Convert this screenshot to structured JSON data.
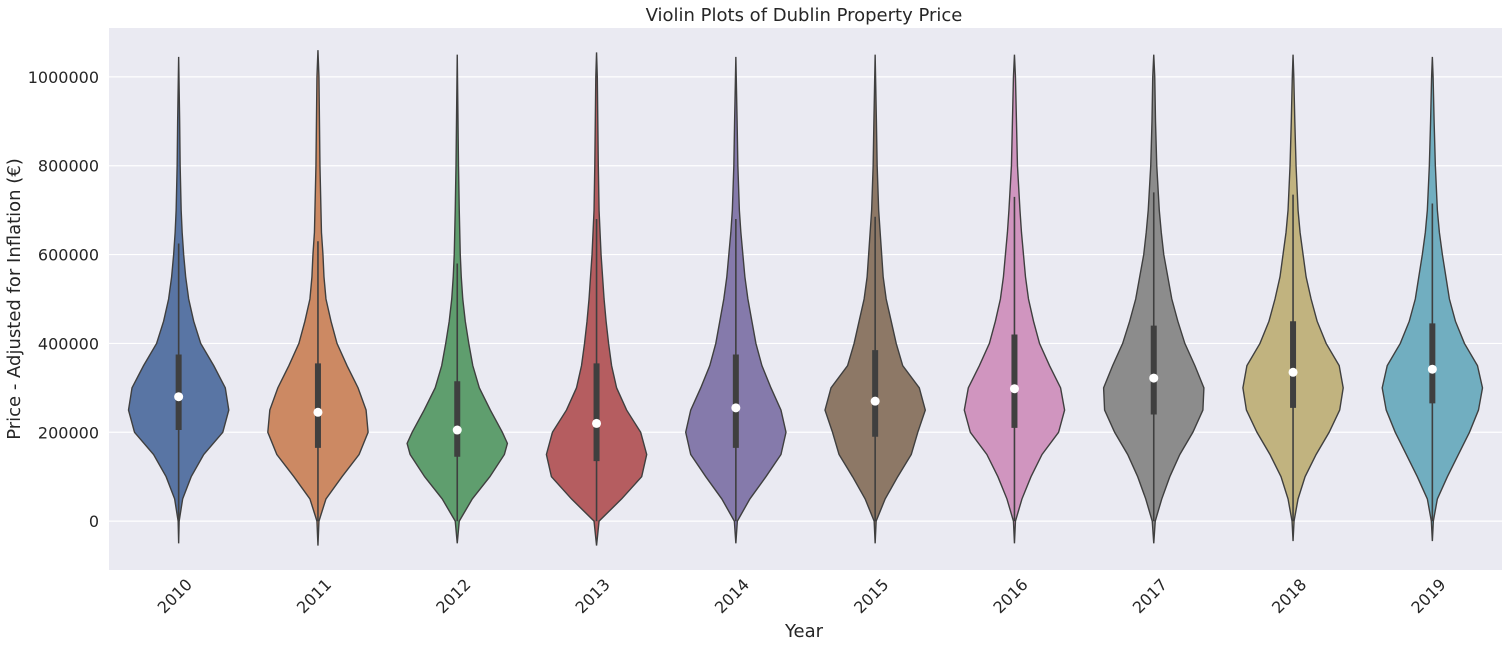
{
  "chart_data": {
    "type": "violin",
    "title": "Violin Plots of Dublin Property Price",
    "xlabel": "Year",
    "ylabel": "Price - Adjusted for Inflation (€)",
    "ylim": [
      -110000,
      1110000
    ],
    "y_ticks": [
      0,
      200000,
      400000,
      600000,
      800000,
      1000000
    ],
    "y_tick_labels": [
      "0",
      "200000",
      "400000",
      "600000",
      "800000",
      "1000000"
    ],
    "grid": true,
    "background_color": "#eaeaf2",
    "categories": [
      "2010",
      "2011",
      "2012",
      "2013",
      "2014",
      "2015",
      "2016",
      "2017",
      "2018",
      "2019"
    ],
    "colors": [
      "#5975a4",
      "#cc8963",
      "#5f9e6e",
      "#b55d60",
      "#857aab",
      "#8d7866",
      "#d095bf",
      "#8c8c8c",
      "#c1b37f",
      "#71aec0"
    ],
    "series": [
      {
        "category": "2010",
        "min": -50000,
        "max": 1045000,
        "median": 280000,
        "q1": 205000,
        "q3": 375000,
        "whisker_low": 0,
        "whisker_high": 625000,
        "profile": [
          [
            -50000,
            0
          ],
          [
            0,
            0.01
          ],
          [
            50000,
            0.08
          ],
          [
            100000,
            0.25
          ],
          [
            150000,
            0.5
          ],
          [
            200000,
            0.88
          ],
          [
            250000,
            1.0
          ],
          [
            300000,
            0.93
          ],
          [
            350000,
            0.7
          ],
          [
            400000,
            0.44
          ],
          [
            450000,
            0.3
          ],
          [
            500000,
            0.2
          ],
          [
            550000,
            0.14
          ],
          [
            600000,
            0.1
          ],
          [
            650000,
            0.07
          ],
          [
            700000,
            0.05
          ],
          [
            800000,
            0.03
          ],
          [
            900000,
            0.02
          ],
          [
            1045000,
            0
          ]
        ]
      },
      {
        "category": "2011",
        "min": -55000,
        "max": 1060000,
        "median": 245000,
        "q1": 165000,
        "q3": 355000,
        "whisker_low": 0,
        "whisker_high": 630000,
        "profile": [
          [
            -55000,
            0
          ],
          [
            0,
            0.02
          ],
          [
            50000,
            0.16
          ],
          [
            100000,
            0.48
          ],
          [
            150000,
            0.82
          ],
          [
            200000,
            1.0
          ],
          [
            250000,
            0.96
          ],
          [
            300000,
            0.8
          ],
          [
            350000,
            0.58
          ],
          [
            400000,
            0.38
          ],
          [
            450000,
            0.26
          ],
          [
            500000,
            0.16
          ],
          [
            550000,
            0.12
          ],
          [
            600000,
            0.1
          ],
          [
            650000,
            0.07
          ],
          [
            700000,
            0.06
          ],
          [
            800000,
            0.04
          ],
          [
            900000,
            0.03
          ],
          [
            1000000,
            0.02
          ],
          [
            1060000,
            0
          ]
        ]
      },
      {
        "category": "2012",
        "min": -50000,
        "max": 1050000,
        "median": 205000,
        "q1": 145000,
        "q3": 315000,
        "whisker_low": 0,
        "whisker_high": 580000,
        "profile": [
          [
            -50000,
            0
          ],
          [
            0,
            0.04
          ],
          [
            50000,
            0.3
          ],
          [
            100000,
            0.65
          ],
          [
            150000,
            0.94
          ],
          [
            175000,
            1.0
          ],
          [
            200000,
            0.9
          ],
          [
            250000,
            0.66
          ],
          [
            300000,
            0.44
          ],
          [
            350000,
            0.31
          ],
          [
            400000,
            0.23
          ],
          [
            450000,
            0.16
          ],
          [
            500000,
            0.11
          ],
          [
            550000,
            0.08
          ],
          [
            600000,
            0.06
          ],
          [
            700000,
            0.04
          ],
          [
            800000,
            0.025
          ],
          [
            900000,
            0.015
          ],
          [
            1050000,
            0
          ]
        ]
      },
      {
        "category": "2013",
        "min": -55000,
        "max": 1055000,
        "median": 220000,
        "q1": 135000,
        "q3": 355000,
        "whisker_low": 0,
        "whisker_high": 680000,
        "profile": [
          [
            -55000,
            0
          ],
          [
            0,
            0.05
          ],
          [
            50000,
            0.5
          ],
          [
            100000,
            0.9
          ],
          [
            150000,
            1.0
          ],
          [
            200000,
            0.88
          ],
          [
            250000,
            0.6
          ],
          [
            300000,
            0.4
          ],
          [
            350000,
            0.3
          ],
          [
            400000,
            0.24
          ],
          [
            450000,
            0.19
          ],
          [
            500000,
            0.15
          ],
          [
            550000,
            0.12
          ],
          [
            600000,
            0.09
          ],
          [
            650000,
            0.07
          ],
          [
            700000,
            0.05
          ],
          [
            800000,
            0.035
          ],
          [
            900000,
            0.025
          ],
          [
            1000000,
            0.015
          ],
          [
            1055000,
            0
          ]
        ]
      },
      {
        "category": "2014",
        "min": -50000,
        "max": 1045000,
        "median": 255000,
        "q1": 165000,
        "q3": 375000,
        "whisker_low": 0,
        "whisker_high": 680000,
        "profile": [
          [
            -50000,
            0
          ],
          [
            0,
            0.03
          ],
          [
            50000,
            0.28
          ],
          [
            100000,
            0.6
          ],
          [
            150000,
            0.9
          ],
          [
            200000,
            1.0
          ],
          [
            250000,
            0.9
          ],
          [
            300000,
            0.7
          ],
          [
            350000,
            0.52
          ],
          [
            400000,
            0.4
          ],
          [
            450000,
            0.32
          ],
          [
            500000,
            0.24
          ],
          [
            550000,
            0.18
          ],
          [
            600000,
            0.14
          ],
          [
            650000,
            0.1
          ],
          [
            700000,
            0.07
          ],
          [
            800000,
            0.04
          ],
          [
            900000,
            0.025
          ],
          [
            1045000,
            0
          ]
        ]
      },
      {
        "category": "2015",
        "min": -50000,
        "max": 1050000,
        "median": 270000,
        "q1": 190000,
        "q3": 385000,
        "whisker_low": 0,
        "whisker_high": 685000,
        "profile": [
          [
            -50000,
            0
          ],
          [
            0,
            0.02
          ],
          [
            50000,
            0.2
          ],
          [
            100000,
            0.45
          ],
          [
            150000,
            0.72
          ],
          [
            200000,
            0.85
          ],
          [
            250000,
            1.0
          ],
          [
            300000,
            0.88
          ],
          [
            350000,
            0.55
          ],
          [
            400000,
            0.42
          ],
          [
            450000,
            0.32
          ],
          [
            500000,
            0.22
          ],
          [
            550000,
            0.16
          ],
          [
            600000,
            0.13
          ],
          [
            650000,
            0.1
          ],
          [
            700000,
            0.07
          ],
          [
            800000,
            0.04
          ],
          [
            900000,
            0.025
          ],
          [
            1050000,
            0
          ]
        ]
      },
      {
        "category": "2016",
        "min": -50000,
        "max": 1050000,
        "median": 298000,
        "q1": 210000,
        "q3": 420000,
        "whisker_low": 0,
        "whisker_high": 730000,
        "profile": [
          [
            -50000,
            0
          ],
          [
            0,
            0.02
          ],
          [
            50000,
            0.15
          ],
          [
            100000,
            0.33
          ],
          [
            150000,
            0.55
          ],
          [
            200000,
            0.88
          ],
          [
            250000,
            1.0
          ],
          [
            300000,
            0.92
          ],
          [
            350000,
            0.7
          ],
          [
            400000,
            0.5
          ],
          [
            450000,
            0.38
          ],
          [
            500000,
            0.28
          ],
          [
            550000,
            0.22
          ],
          [
            600000,
            0.18
          ],
          [
            650000,
            0.14
          ],
          [
            700000,
            0.11
          ],
          [
            800000,
            0.06
          ],
          [
            900000,
            0.04
          ],
          [
            1000000,
            0.02
          ],
          [
            1050000,
            0
          ]
        ]
      },
      {
        "category": "2017",
        "min": -50000,
        "max": 1050000,
        "median": 322000,
        "q1": 240000,
        "q3": 440000,
        "whisker_low": 0,
        "whisker_high": 740000,
        "profile": [
          [
            -50000,
            0
          ],
          [
            0,
            0.03
          ],
          [
            50000,
            0.16
          ],
          [
            100000,
            0.32
          ],
          [
            150000,
            0.52
          ],
          [
            200000,
            0.78
          ],
          [
            250000,
            0.98
          ],
          [
            300000,
            1.0
          ],
          [
            350000,
            0.82
          ],
          [
            400000,
            0.62
          ],
          [
            450000,
            0.48
          ],
          [
            500000,
            0.36
          ],
          [
            550000,
            0.28
          ],
          [
            600000,
            0.2
          ],
          [
            650000,
            0.15
          ],
          [
            700000,
            0.11
          ],
          [
            800000,
            0.06
          ],
          [
            900000,
            0.035
          ],
          [
            1000000,
            0.02
          ],
          [
            1050000,
            0
          ]
        ]
      },
      {
        "category": "2018",
        "min": -45000,
        "max": 1050000,
        "median": 335000,
        "q1": 255000,
        "q3": 450000,
        "whisker_low": 0,
        "whisker_high": 735000,
        "profile": [
          [
            -45000,
            0
          ],
          [
            0,
            0.02
          ],
          [
            50000,
            0.1
          ],
          [
            100000,
            0.24
          ],
          [
            150000,
            0.46
          ],
          [
            200000,
            0.72
          ],
          [
            250000,
            0.93
          ],
          [
            300000,
            1.0
          ],
          [
            350000,
            0.92
          ],
          [
            400000,
            0.66
          ],
          [
            450000,
            0.48
          ],
          [
            500000,
            0.36
          ],
          [
            550000,
            0.26
          ],
          [
            600000,
            0.2
          ],
          [
            650000,
            0.14
          ],
          [
            700000,
            0.1
          ],
          [
            800000,
            0.06
          ],
          [
            900000,
            0.035
          ],
          [
            1000000,
            0.015
          ],
          [
            1050000,
            0
          ]
        ]
      },
      {
        "category": "2019",
        "min": -45000,
        "max": 1045000,
        "median": 342000,
        "q1": 265000,
        "q3": 445000,
        "whisker_low": 0,
        "whisker_high": 715000,
        "profile": [
          [
            -45000,
            0
          ],
          [
            0,
            0.02
          ],
          [
            50000,
            0.1
          ],
          [
            100000,
            0.3
          ],
          [
            150000,
            0.52
          ],
          [
            200000,
            0.74
          ],
          [
            250000,
            0.92
          ],
          [
            300000,
            1.0
          ],
          [
            350000,
            0.9
          ],
          [
            400000,
            0.64
          ],
          [
            450000,
            0.46
          ],
          [
            500000,
            0.34
          ],
          [
            550000,
            0.27
          ],
          [
            600000,
            0.2
          ],
          [
            650000,
            0.14
          ],
          [
            700000,
            0.1
          ],
          [
            800000,
            0.06
          ],
          [
            900000,
            0.035
          ],
          [
            1000000,
            0.015
          ],
          [
            1045000,
            0
          ]
        ]
      }
    ]
  }
}
